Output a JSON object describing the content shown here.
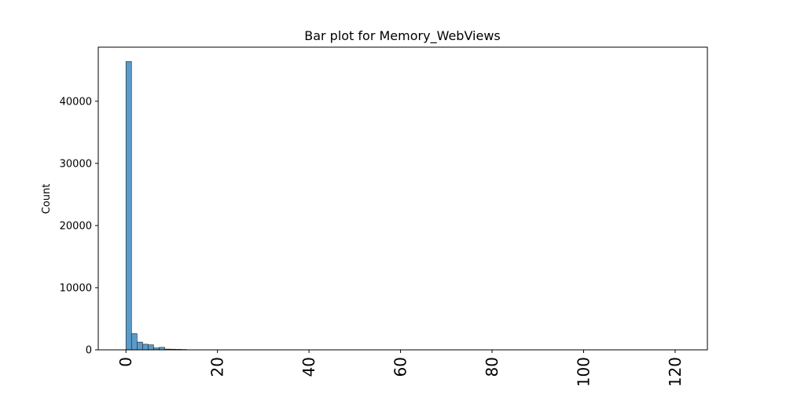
{
  "chart_data": {
    "type": "bar",
    "title": "Bar plot for Memory_WebViews",
    "xlabel": "",
    "ylabel": "Count",
    "xlim": [
      -6.05,
      127.05
    ],
    "ylim": [
      0,
      48700
    ],
    "x_ticks": [
      0,
      20,
      40,
      60,
      80,
      100,
      120
    ],
    "x_tick_labels": [
      "0",
      "20",
      "40",
      "60",
      "80",
      "100",
      "120"
    ],
    "y_ticks": [
      0,
      10000,
      20000,
      30000,
      40000
    ],
    "y_tick_labels": [
      "0",
      "10000",
      "20000",
      "30000",
      "40000"
    ],
    "bin_width": 1.21,
    "bin_start": 0,
    "values": [
      46400,
      2600,
      1250,
      900,
      800,
      300,
      400,
      120,
      100,
      80,
      60,
      0,
      0,
      0,
      0,
      0,
      0,
      0,
      0,
      0,
      0,
      0,
      0,
      0,
      0,
      0,
      0,
      0,
      0,
      0,
      0,
      0,
      0,
      0,
      0,
      0,
      0,
      0,
      0,
      0,
      0,
      0,
      0,
      0,
      0,
      0,
      0,
      0,
      0,
      0,
      0,
      0,
      0,
      0,
      0,
      0,
      0,
      0,
      0,
      0,
      0,
      0,
      0,
      0,
      0,
      0,
      0,
      0,
      0,
      0,
      0,
      0,
      0,
      0,
      0,
      0,
      0,
      0,
      0,
      0,
      0,
      0,
      0,
      0,
      0,
      0,
      0,
      0,
      0,
      0,
      0,
      0,
      0,
      0,
      0,
      0,
      0,
      0,
      0,
      0
    ],
    "bar_color": "#5b9bc9",
    "bar_edge_color": "#1f1f1f",
    "grid": false,
    "legend": false
  }
}
